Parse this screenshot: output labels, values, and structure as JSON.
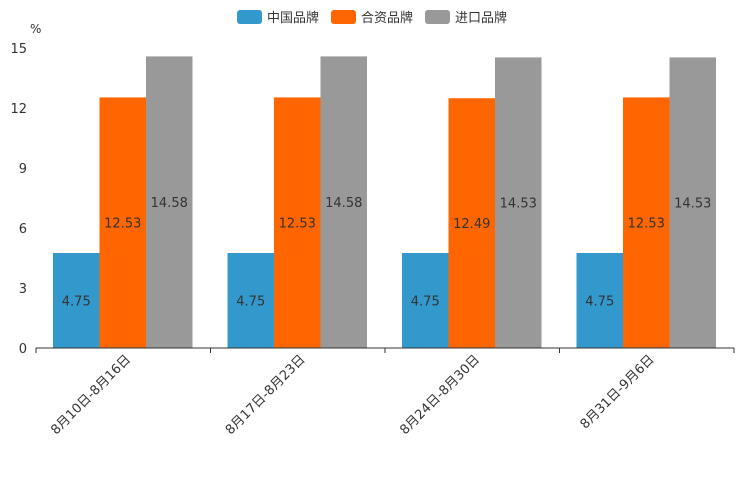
{
  "chart_data": {
    "type": "bar",
    "unit": "%",
    "categories": [
      "8月10日-8月16日",
      "8月17日-8月23日",
      "8月24日-8月30日",
      "8月31日-9月6日"
    ],
    "series": [
      {
        "name": "中国品牌",
        "color": "#3398cc",
        "values": [
          4.75,
          4.75,
          4.75,
          4.75
        ]
      },
      {
        "name": "合资品牌",
        "color": "#ff6600",
        "values": [
          12.53,
          12.53,
          12.49,
          12.53
        ]
      },
      {
        "name": "进口品牌",
        "color": "#999999",
        "values": [
          14.58,
          14.58,
          14.53,
          14.53
        ]
      }
    ],
    "ylim": [
      0,
      15
    ],
    "yticks": [
      0,
      3,
      6,
      9,
      12,
      15
    ],
    "legend": "top-center",
    "grid": false
  }
}
